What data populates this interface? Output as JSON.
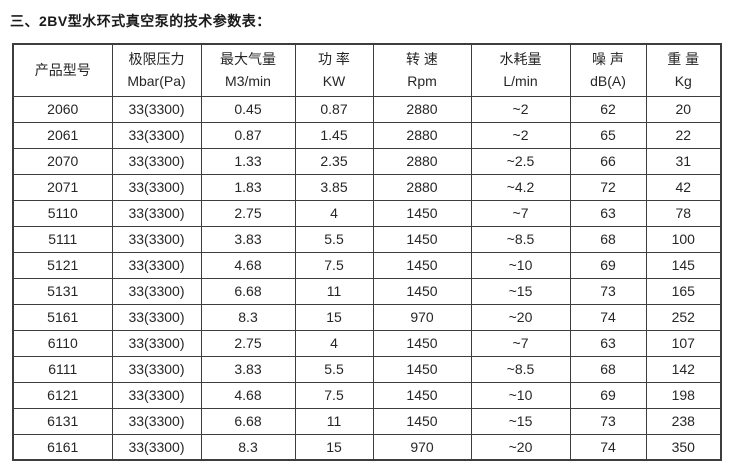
{
  "title": "三、2BV型水环式真空泵的技术参数表：",
  "colors": {
    "background": "#ffffff",
    "border": "#3d3d3d",
    "text": "#262626",
    "title_text": "#1a1a1a"
  },
  "table": {
    "headers": [
      {
        "name": "产品型号",
        "unit": ""
      },
      {
        "name": "极限压力",
        "unit": "Mbar(Pa)"
      },
      {
        "name": "最大气量",
        "unit": "M3/min"
      },
      {
        "name": "功 率",
        "unit": "KW"
      },
      {
        "name": "转 速",
        "unit": "Rpm"
      },
      {
        "name": "水耗量",
        "unit": "L/min"
      },
      {
        "name": "噪 声",
        "unit": "dB(A)"
      },
      {
        "name": "重 量",
        "unit": "Kg"
      }
    ],
    "rows": [
      [
        "2060",
        "33(3300)",
        "0.45",
        "0.87",
        "2880",
        "~2",
        "62",
        "20"
      ],
      [
        "2061",
        "33(3300)",
        "0.87",
        "1.45",
        "2880",
        "~2",
        "65",
        "22"
      ],
      [
        "2070",
        "33(3300)",
        "1.33",
        "2.35",
        "2880",
        "~2.5",
        "66",
        "31"
      ],
      [
        "2071",
        "33(3300)",
        "1.83",
        "3.85",
        "2880",
        "~4.2",
        "72",
        "42"
      ],
      [
        "5110",
        "33(3300)",
        "2.75",
        "4",
        "1450",
        "~7",
        "63",
        "78"
      ],
      [
        "5111",
        "33(3300)",
        "3.83",
        "5.5",
        "1450",
        "~8.5",
        "68",
        "100"
      ],
      [
        "5121",
        "33(3300)",
        "4.68",
        "7.5",
        "1450",
        "~10",
        "69",
        "145"
      ],
      [
        "5131",
        "33(3300)",
        "6.68",
        "11",
        "1450",
        "~15",
        "73",
        "165"
      ],
      [
        "5161",
        "33(3300)",
        "8.3",
        "15",
        "970",
        "~20",
        "74",
        "252"
      ],
      [
        "6110",
        "33(3300)",
        "2.75",
        "4",
        "1450",
        "~7",
        "63",
        "107"
      ],
      [
        "6111",
        "33(3300)",
        "3.83",
        "5.5",
        "1450",
        "~8.5",
        "68",
        "142"
      ],
      [
        "6121",
        "33(3300)",
        "4.68",
        "7.5",
        "1450",
        "~10",
        "69",
        "198"
      ],
      [
        "6131",
        "33(3300)",
        "6.68",
        "11",
        "1450",
        "~15",
        "73",
        "238"
      ],
      [
        "6161",
        "33(3300)",
        "8.3",
        "15",
        "970",
        "~20",
        "74",
        "350"
      ]
    ]
  }
}
